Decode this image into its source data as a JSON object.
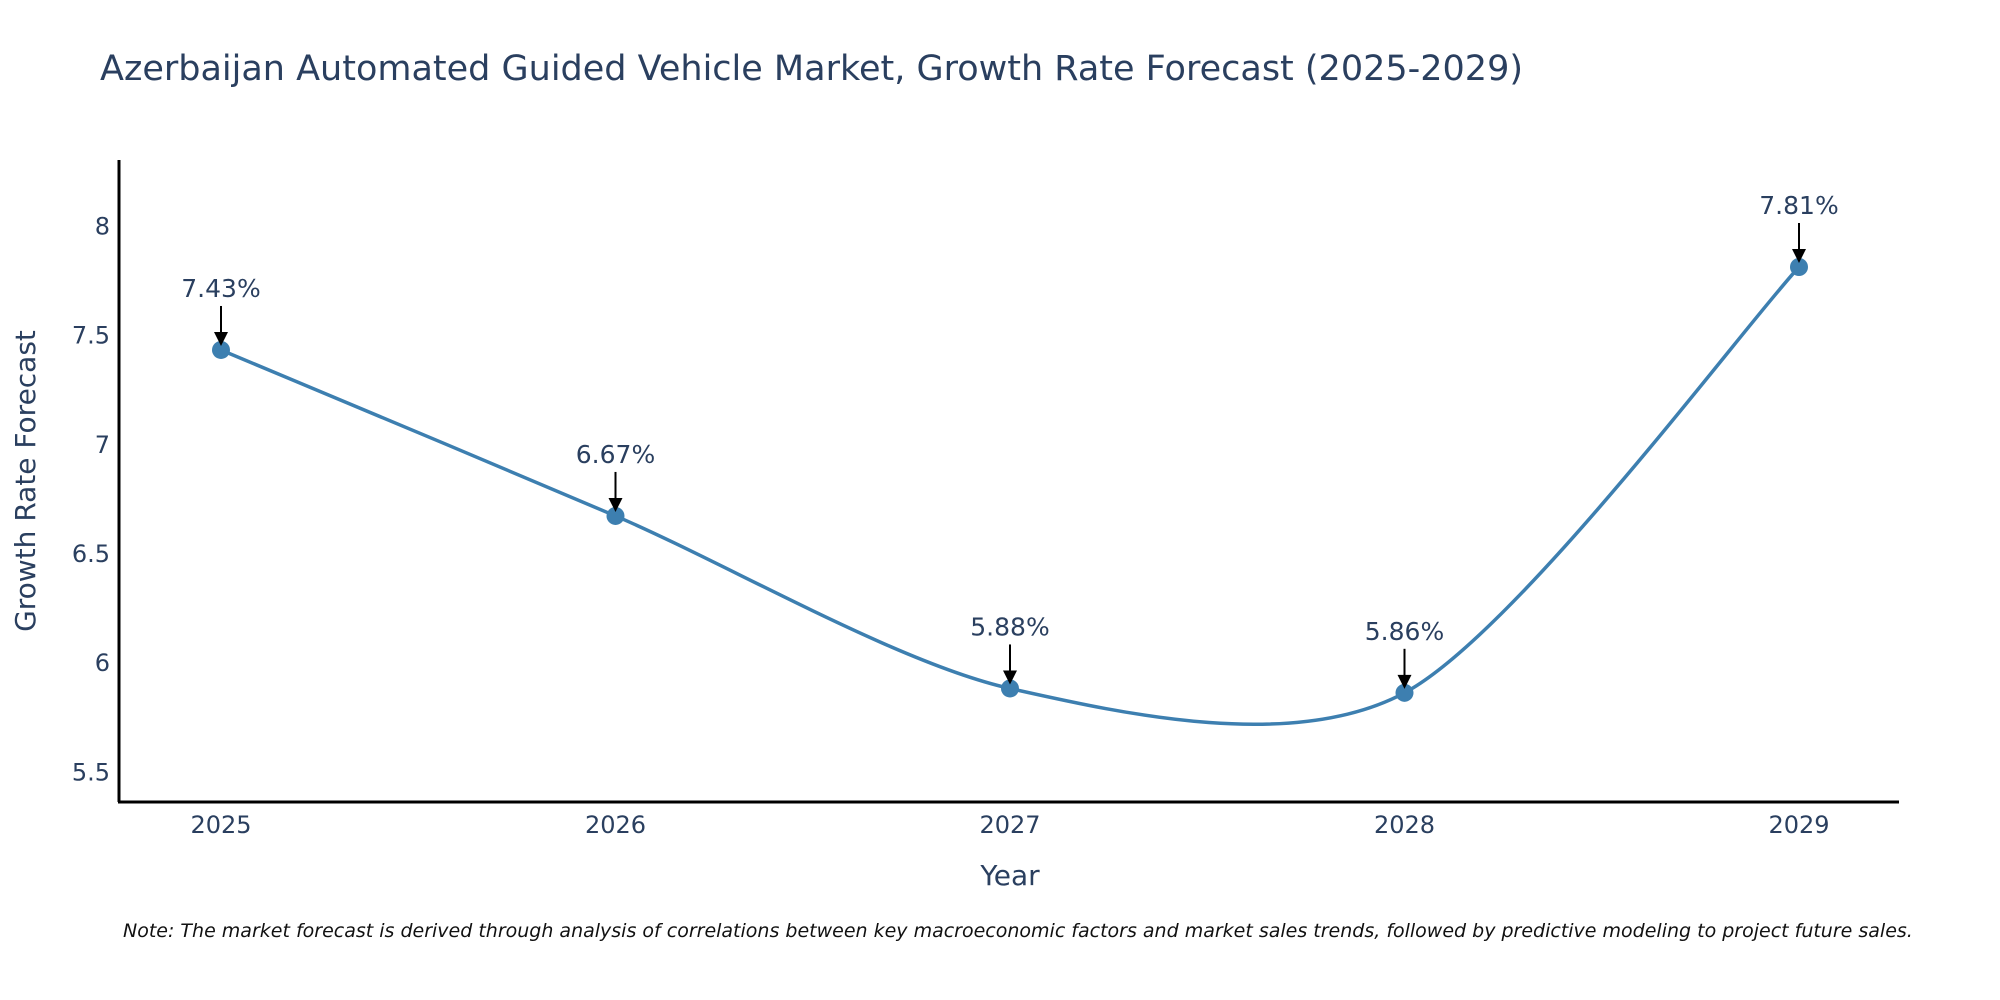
{
  "chart_data": {
    "type": "line",
    "title": "Azerbaijan Automated Guided Vehicle Market, Growth Rate Forecast (2025-2029)",
    "xlabel": "Year",
    "ylabel": "Growth Rate Forecast",
    "categories": [
      "2025",
      "2026",
      "2027",
      "2028",
      "2029"
    ],
    "values": [
      7.43,
      6.67,
      5.88,
      5.86,
      7.81
    ],
    "data_labels": [
      "7.43%",
      "6.67%",
      "5.88%",
      "5.86%",
      "7.81%"
    ],
    "yticks": [
      5.5,
      6,
      6.5,
      7,
      7.5,
      8
    ],
    "ytick_labels": [
      "5.5",
      "6",
      "6.5",
      "7",
      "7.5",
      "8"
    ],
    "ylim": [
      5.36,
      8.3
    ],
    "line_shape": "spline",
    "grid": false,
    "series_color": "#3d7fb0",
    "marker_color": "#3d7fb0"
  },
  "footnote": "Note: The market forecast is derived through analysis of correlations between key macroeconomic factors and market sales trends, followed by predictive modeling to project future sales."
}
